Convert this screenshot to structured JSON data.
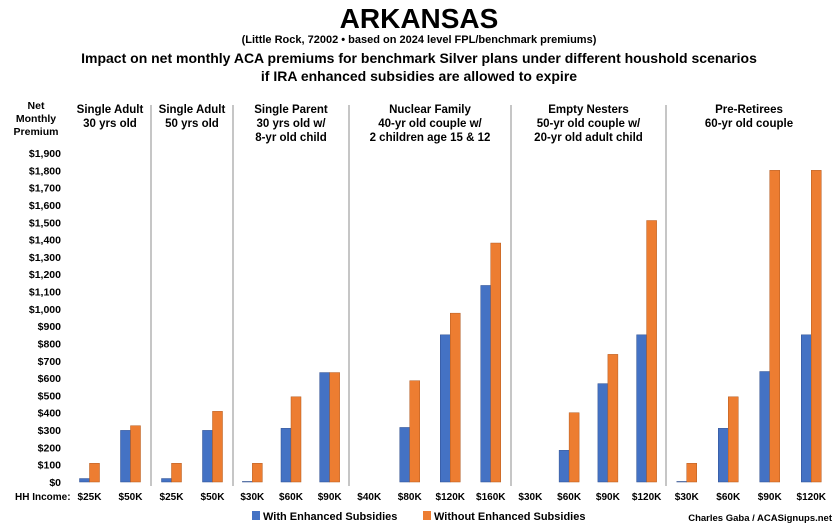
{
  "chart_data": {
    "type": "bar",
    "title": "ARKANSAS",
    "subtitle": "(Little Rock, 72002 • based on 2024 level FPL/benchmark premiums)",
    "heading_line1": "Impact on net monthly ACA premiums for benchmark Silver plans under different houshold scenarios",
    "heading_line2": "if IRA enhanced subsidies are allowed to expire",
    "ylabel_lines": [
      "Net",
      "Monthly",
      "Premium"
    ],
    "xlabel": "HH Income:",
    "ylim": [
      0,
      1900
    ],
    "ytick_step": 100,
    "ytick_labels": [
      "$0",
      "$100",
      "$200",
      "$300",
      "$400",
      "$500",
      "$600",
      "$700",
      "$800",
      "$900",
      "$1,000",
      "$1,100",
      "$1,200",
      "$1,300",
      "$1,400",
      "$1,500",
      "$1,600",
      "$1,700",
      "$1,800",
      "$1,900"
    ],
    "series": [
      {
        "name": "With Enhanced Subsidies",
        "color": "#4472c4"
      },
      {
        "name": "Without Enhanced Subsidies",
        "color": "#ed7d31"
      }
    ],
    "groups": [
      {
        "label_lines": [
          "Single Adult",
          "30 yrs old"
        ],
        "categories": [
          "$25K",
          "$50K"
        ],
        "with": [
          20,
          298
        ],
        "without": [
          108,
          325
        ]
      },
      {
        "label_lines": [
          "Single Adult",
          "50 yrs old"
        ],
        "categories": [
          "$25K",
          "$50K"
        ],
        "with": [
          20,
          298
        ],
        "without": [
          108,
          408
        ]
      },
      {
        "label_lines": [
          "Single Parent",
          "30 yrs old w/",
          "8-yr old child"
        ],
        "categories": [
          "$30K",
          "$60K",
          "$90K"
        ],
        "with": [
          3,
          310,
          632
        ],
        "without": [
          108,
          492,
          632
        ]
      },
      {
        "label_lines": [
          "Nuclear Family",
          "40-yr old couple w/",
          "2 children age 15 & 12"
        ],
        "categories": [
          "$40K",
          "$80K",
          "$120K",
          "$160K"
        ],
        "with": [
          0,
          315,
          850,
          1135
        ],
        "without": [
          0,
          585,
          975,
          1380
        ]
      },
      {
        "label_lines": [
          "Empty Nesters",
          "50-yr old couple w/",
          "20-yr old adult child"
        ],
        "categories": [
          "$30K",
          "$60K",
          "$90K",
          "$120K"
        ],
        "with": [
          0,
          183,
          568,
          850
        ],
        "without": [
          0,
          400,
          737,
          1510
        ]
      },
      {
        "label_lines": [
          "Pre-Retirees",
          "60-yr old couple"
        ],
        "categories": [
          "$30K",
          "$60K",
          "$90K",
          "$120K"
        ],
        "with": [
          3,
          310,
          638,
          850
        ],
        "without": [
          108,
          492,
          1800,
          1800
        ]
      }
    ],
    "grid": false,
    "legend_position": "bottom-center"
  },
  "credit": "Charles Gaba / ACASignups.net"
}
